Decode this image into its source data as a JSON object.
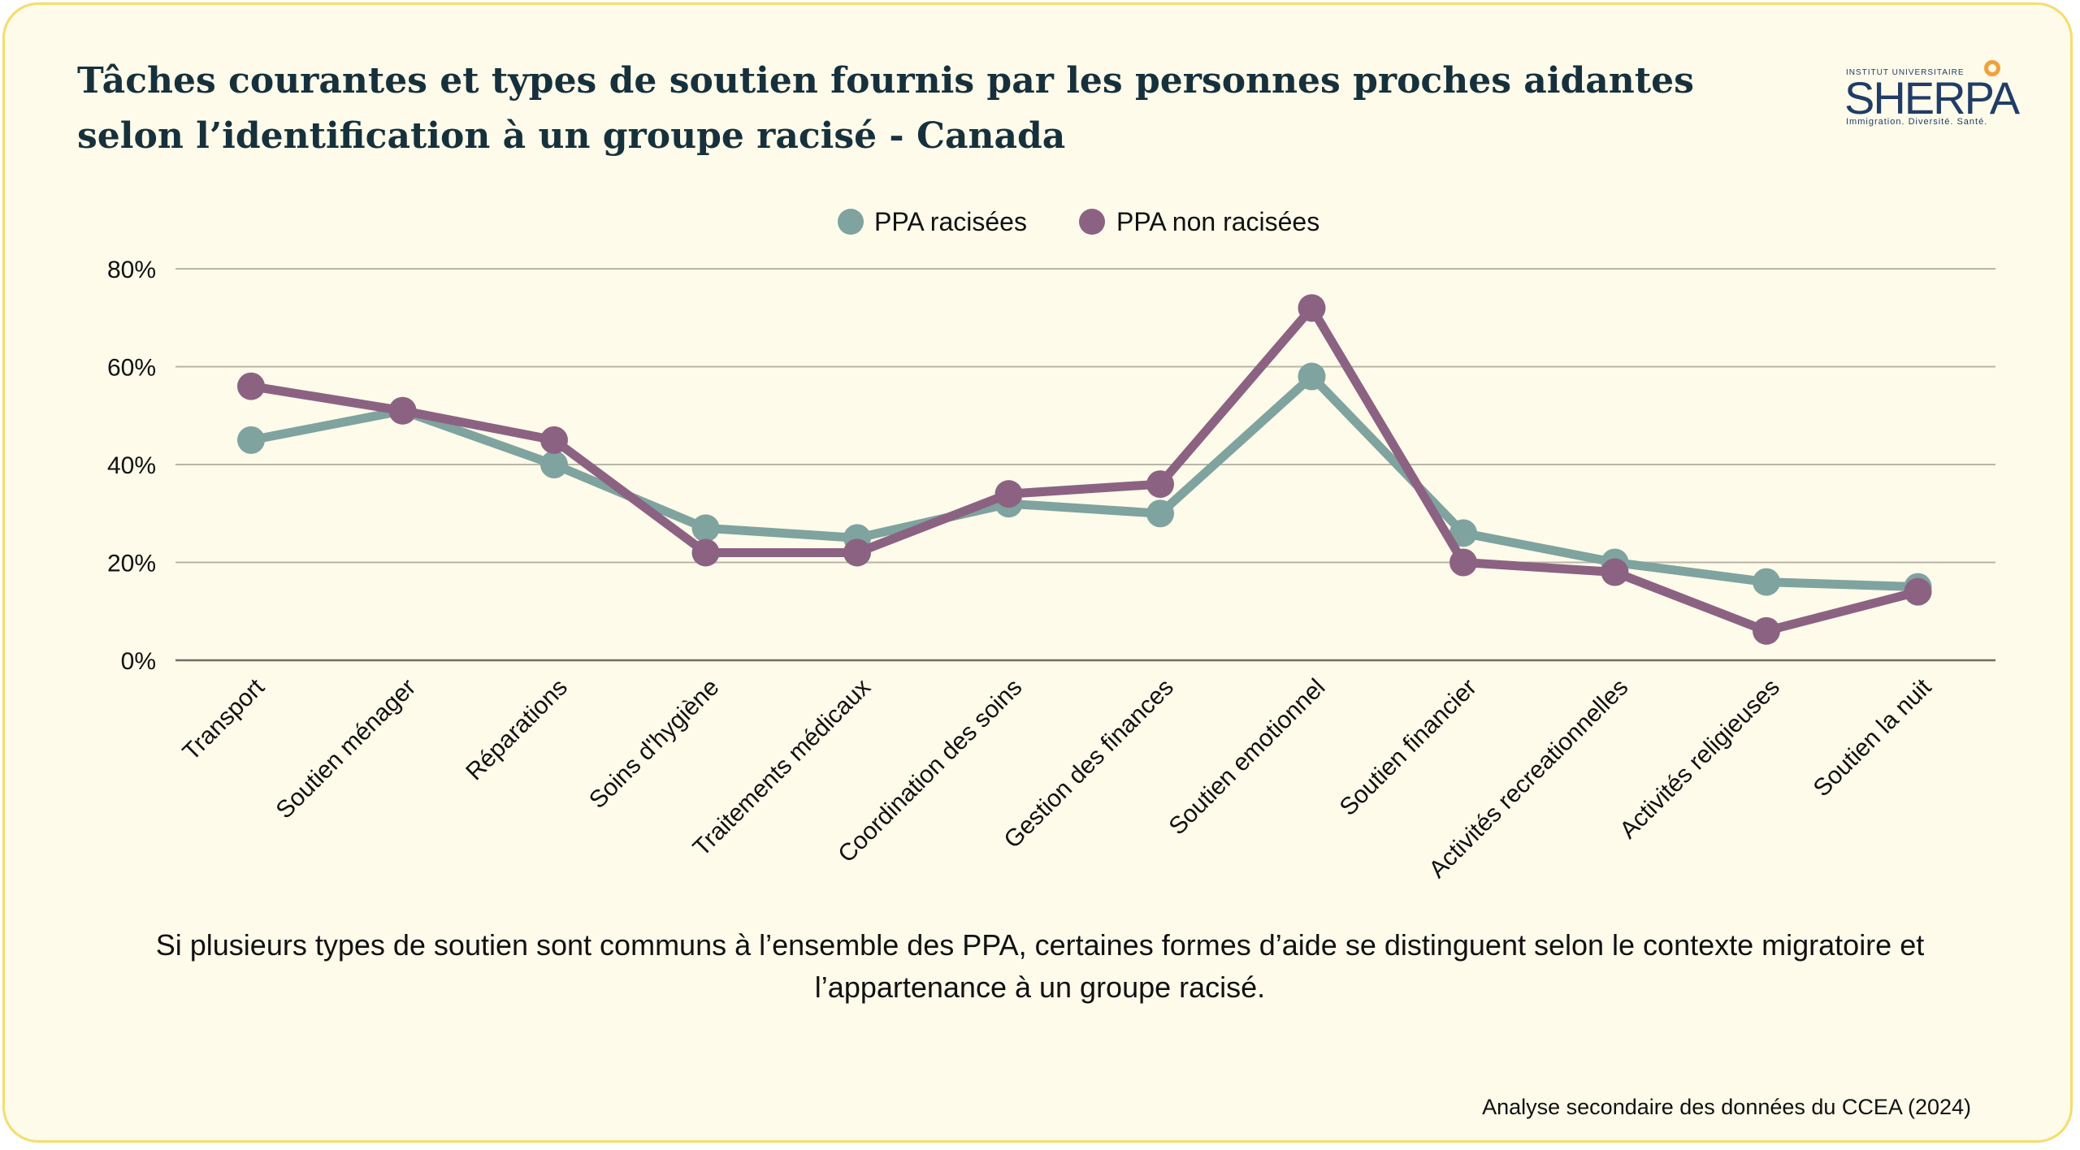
{
  "title": "Tâches courantes et types de soutien fournis par les personnes proches aidantes selon l’identification à un groupe racisé - Canada",
  "logo": {
    "top": "INSTITUT UNIVERSITAIRE",
    "main": "SHERPA",
    "tagline": "Immigration. Diversité. Santé."
  },
  "caption": "Si plusieurs types de soutien sont communs à l’ensemble des PPA, certaines formes d’aide se distinguent selon le contexte migratoire et l’appartenance à un groupe racisé.",
  "source": "Analyse secondaire des données du CCEA (2024)",
  "colors": {
    "background": "#fefbea",
    "border": "#f5dd6b",
    "title": "#16313c",
    "series_racisees": "#7fa39e",
    "series_non_racisees": "#8c6282",
    "grid": "#b9b6a8",
    "logo_accent": "#f0a23a"
  },
  "chart_data": {
    "type": "line",
    "categories": [
      "Transport",
      "Soutien ménager",
      "Réparations",
      "Soins d'hygiène",
      "Traitements médicaux",
      "Coordination des soins",
      "Gestion des finances",
      "Soutien emotionnel",
      "Soutien financier",
      "Activités recreationnelles",
      "Activités religieuses",
      "Soutien la nuit"
    ],
    "series": [
      {
        "name": "PPA racisées",
        "color": "#7fa39e",
        "values": [
          45,
          51,
          40,
          27,
          25,
          32,
          30,
          58,
          26,
          20,
          16,
          15
        ]
      },
      {
        "name": "PPA non racisées",
        "color": "#8c6282",
        "values": [
          56,
          51,
          45,
          22,
          22,
          34,
          36,
          72,
          20,
          18,
          6,
          14
        ]
      }
    ],
    "yticks": [
      "0%",
      "20%",
      "40%",
      "60%",
      "80%"
    ],
    "ylim": [
      0,
      80
    ],
    "y_unit": "%",
    "grid": true,
    "legend_position": "top-center",
    "xlabel": "",
    "ylabel": ""
  }
}
